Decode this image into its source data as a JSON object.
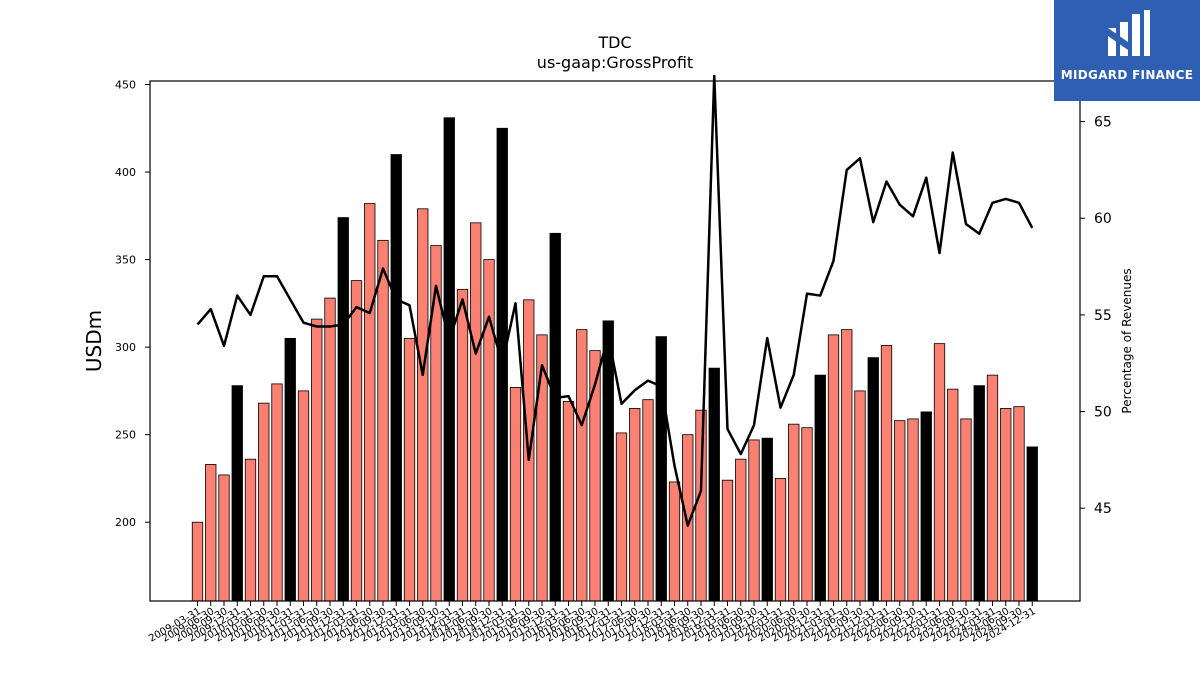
{
  "chart_data": {
    "type": "bar",
    "title": "TDC",
    "subtitle": "us-gaap:GrossProfit",
    "ylabel": "USDm",
    "y2label": "Percentage of Revenues",
    "ylim": [
      155,
      452
    ],
    "y2lim": [
      40.2,
      67.1
    ],
    "yticks": [
      200,
      250,
      300,
      350,
      400,
      450
    ],
    "y2ticks": [
      45,
      50,
      55,
      60,
      65
    ],
    "colors": {
      "quarter_bar": "#fa8072",
      "year_end_bar": "#000000",
      "line": "#000000",
      "bar_edge": "#000000"
    },
    "categories": [
      "2009-03-31",
      "2009-06-30",
      "2009-09-30",
      "2009-12-31",
      "2010-03-31",
      "2010-06-30",
      "2010-09-30",
      "2010-12-31",
      "2011-03-31",
      "2011-06-30",
      "2011-09-30",
      "2011-12-31",
      "2012-03-31",
      "2012-06-30",
      "2012-09-30",
      "2012-12-31",
      "2013-03-31",
      "2013-06-30",
      "2013-09-30",
      "2013-12-31",
      "2014-03-31",
      "2014-06-30",
      "2014-09-30",
      "2014-12-31",
      "2015-03-31",
      "2015-06-30",
      "2015-09-30",
      "2015-12-31",
      "2016-03-31",
      "2016-06-30",
      "2016-09-30",
      "2016-12-31",
      "2017-03-31",
      "2017-06-30",
      "2017-09-30",
      "2017-12-31",
      "2018-03-31",
      "2018-06-30",
      "2018-09-30",
      "2018-12-31",
      "2019-03-31",
      "2019-06-30",
      "2019-09-30",
      "2019-12-31",
      "2020-03-31",
      "2020-06-30",
      "2020-09-30",
      "2020-12-31",
      "2021-03-31",
      "2021-06-30",
      "2021-09-30",
      "2021-12-31",
      "2022-03-31",
      "2022-06-30",
      "2022-09-30",
      "2022-12-31",
      "2023-03-31",
      "2023-06-30",
      "2023-09-30",
      "2023-12-31",
      "2024-03-31",
      "2024-06-30",
      "2024-09-30",
      "2024-12-31"
    ],
    "bar_values": [
      200,
      233,
      227,
      278,
      236,
      268,
      279,
      305,
      275,
      316,
      328,
      374,
      338,
      382,
      361,
      410,
      305,
      379,
      358,
      431,
      333,
      371,
      350,
      425,
      277,
      327,
      307,
      365,
      269,
      310,
      298,
      315,
      251,
      265,
      270,
      306,
      223,
      250,
      264,
      288,
      224,
      236,
      247,
      248,
      225,
      256,
      254,
      284,
      307,
      310,
      275,
      294,
      301,
      258,
      259,
      263,
      302,
      276,
      259,
      278,
      284,
      265,
      266,
      243
    ],
    "year_end_flags": [
      0,
      0,
      0,
      1,
      0,
      0,
      0,
      1,
      0,
      0,
      0,
      1,
      0,
      0,
      0,
      1,
      0,
      0,
      0,
      1,
      0,
      0,
      0,
      1,
      0,
      0,
      0,
      1,
      0,
      0,
      0,
      1,
      0,
      0,
      0,
      1,
      0,
      0,
      0,
      1,
      0,
      0,
      0,
      1,
      0,
      0,
      0,
      1,
      0,
      0,
      0,
      1,
      0,
      0,
      0,
      1,
      0,
      0,
      0,
      1,
      0,
      0,
      0,
      1
    ],
    "pct_values": [
      54.5,
      55.3,
      53.4,
      56.0,
      55.0,
      57.0,
      57.0,
      55.8,
      54.6,
      54.4,
      54.4,
      54.5,
      55.4,
      55.1,
      57.4,
      55.8,
      55.5,
      51.9,
      56.5,
      53.7,
      55.8,
      53.0,
      54.9,
      52.5,
      55.6,
      47.5,
      52.4,
      50.7,
      50.8,
      49.3,
      51.4,
      53.9,
      50.4,
      51.1,
      51.6,
      51.3,
      47.2,
      44.1,
      45.9,
      67.1,
      49.1,
      47.8,
      49.3,
      53.8,
      50.2,
      51.9,
      56.1,
      56.0,
      57.8,
      62.5,
      63.1,
      59.8,
      61.9,
      60.7,
      60.1,
      62.1,
      58.2,
      63.4,
      59.7,
      59.2,
      60.8,
      61.0,
      60.8,
      59.5
    ]
  }
}
